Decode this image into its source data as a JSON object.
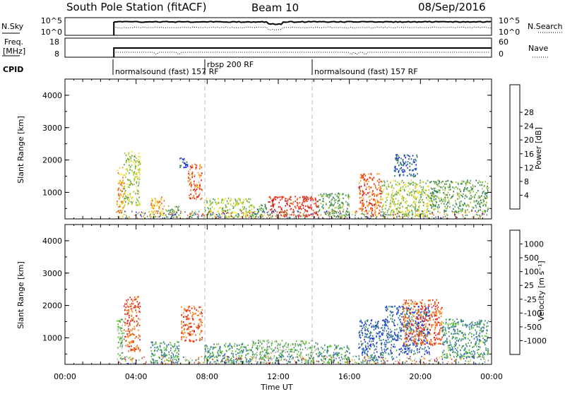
{
  "header": {
    "station": "South Pole Station (fitACF)",
    "beam": "Beam 10",
    "date": "08/Sep/2016"
  },
  "strips": {
    "nsky_label": "N.Sky",
    "nsearch_label": "N.Search",
    "nsky_ticks": [
      "10^5",
      "10^0"
    ],
    "nsearch_ticks": [
      "10^5",
      "10^0"
    ],
    "freq_label_1": "Freq.",
    "freq_label_2": "[MHz]",
    "freq_ticks": [
      "18",
      "8"
    ],
    "nave_label": "Nave",
    "nave_ticks": [
      "60",
      "0"
    ],
    "cpid_label": "CPID",
    "cpid_segments": [
      {
        "start_h": 2.75,
        "label": "normalsound (fast) 157 RF"
      },
      {
        "start_h": 8.0,
        "label": "rbsp 200 RF"
      },
      {
        "start_h": 14.0,
        "label": "normalsound (fast) 157 RF"
      }
    ]
  },
  "chart_data": [
    {
      "type": "heatmap",
      "name": "power",
      "ylabel": "Slant Range [km]",
      "yticks": [
        "1000",
        "2000",
        "3000",
        "4000"
      ],
      "ylim": [
        180,
        4500
      ],
      "xlim_hours": [
        0,
        24
      ],
      "data_start_hour": 2.75,
      "colorbar": {
        "label": "Power [dB]",
        "ticks": [
          "4",
          "8",
          "12",
          "16",
          "20",
          "24",
          "28"
        ],
        "colors": [
          "#1a1aff",
          "#2255aa",
          "#2e7d5e",
          "#5fa35a",
          "#a4c73a",
          "#f0e020",
          "#f7a02a",
          "#f06010",
          "#e02020"
        ]
      },
      "events": [
        {
          "t0": 2.9,
          "t1": 3.3,
          "r0": 250,
          "r1": 1800,
          "c": 6
        },
        {
          "t0": 3.3,
          "t1": 4.2,
          "r0": 600,
          "r1": 2300,
          "c": 4
        },
        {
          "t0": 4.8,
          "t1": 5.6,
          "r0": 250,
          "r1": 900,
          "c": 6
        },
        {
          "t0": 5.6,
          "t1": 6.4,
          "r0": 250,
          "r1": 600,
          "c": 3
        },
        {
          "t0": 6.4,
          "t1": 6.9,
          "r0": 1700,
          "r1": 2100,
          "c": 1
        },
        {
          "t0": 6.9,
          "t1": 7.7,
          "r0": 800,
          "r1": 1900,
          "c": 7
        },
        {
          "t0": 7.8,
          "t1": 10.5,
          "r0": 250,
          "r1": 850,
          "c": 4
        },
        {
          "t0": 10.5,
          "t1": 11.4,
          "r0": 250,
          "r1": 650,
          "c": 3
        },
        {
          "t0": 11.4,
          "t1": 14.2,
          "r0": 250,
          "r1": 900,
          "c": 8
        },
        {
          "t0": 14.2,
          "t1": 16.0,
          "r0": 250,
          "r1": 1000,
          "c": 3
        },
        {
          "t0": 16.5,
          "t1": 17.8,
          "r0": 300,
          "r1": 1600,
          "c": 7
        },
        {
          "t0": 17.8,
          "t1": 20.5,
          "r0": 250,
          "r1": 1400,
          "c": 4
        },
        {
          "t0": 18.5,
          "t1": 19.8,
          "r0": 1500,
          "r1": 2200,
          "c": 1
        },
        {
          "t0": 20.5,
          "t1": 23.8,
          "r0": 400,
          "r1": 1400,
          "c": 3
        }
      ]
    },
    {
      "type": "heatmap",
      "name": "velocity",
      "ylabel": "Slant Range [km]",
      "yticks": [
        "1000",
        "2000",
        "3000",
        "4000"
      ],
      "ylim": [
        180,
        4500
      ],
      "xticks": [
        "00:00",
        "04:00",
        "08:00",
        "12:00",
        "16:00",
        "20:00",
        "00:00"
      ],
      "xlabel": "Time UT",
      "colorbar": {
        "label": "Velocity [m s⁻¹]",
        "ticks": [
          "1000",
          "500",
          "100",
          "25",
          "-25",
          "-100",
          "-500",
          "-1000"
        ],
        "colors": [
          "#2233dd",
          "#3a70b8",
          "#3d8f66",
          "#58c030",
          "#bdbdbd",
          "#f8c020",
          "#f59020",
          "#f06010",
          "#e02020"
        ]
      },
      "events": [
        {
          "t0": 2.9,
          "t1": 3.3,
          "r0": 300,
          "r1": 1600,
          "c": 3
        },
        {
          "t0": 3.3,
          "t1": 4.2,
          "r0": 600,
          "r1": 2300,
          "c": 7
        },
        {
          "t0": 4.8,
          "t1": 6.4,
          "r0": 250,
          "r1": 900,
          "c": 2
        },
        {
          "t0": 6.5,
          "t1": 7.7,
          "r0": 900,
          "r1": 2000,
          "c": 7
        },
        {
          "t0": 7.8,
          "t1": 10.5,
          "r0": 250,
          "r1": 850,
          "c": 2
        },
        {
          "t0": 10.5,
          "t1": 14.2,
          "r0": 250,
          "r1": 950,
          "c": 3
        },
        {
          "t0": 14.2,
          "t1": 16.0,
          "r0": 250,
          "r1": 800,
          "c": 2
        },
        {
          "t0": 16.5,
          "t1": 18.0,
          "r0": 300,
          "r1": 1600,
          "c": 1
        },
        {
          "t0": 18.0,
          "t1": 20.5,
          "r0": 500,
          "r1": 2000,
          "c": 1
        },
        {
          "t0": 19.0,
          "t1": 21.2,
          "r0": 800,
          "r1": 2200,
          "c": 7
        },
        {
          "t0": 21.2,
          "t1": 23.8,
          "r0": 400,
          "r1": 1600,
          "c": 2
        }
      ]
    }
  ]
}
